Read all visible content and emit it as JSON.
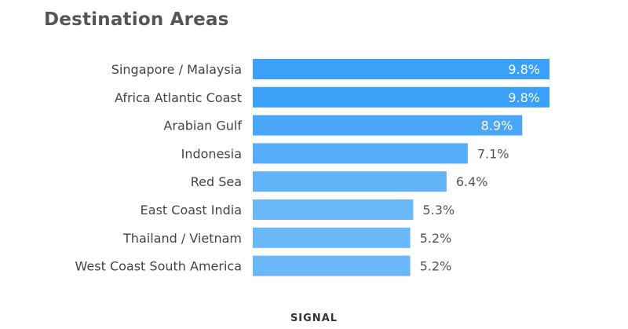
{
  "chart_data": {
    "type": "bar",
    "orientation": "horizontal",
    "title": "Destination Areas",
    "categories": [
      "Singapore / Malaysia",
      "Africa Atlantic Coast",
      "Arabian Gulf",
      "Indonesia",
      "Red Sea",
      "East Coast India",
      "Thailand / Vietnam",
      "West Coast South America"
    ],
    "values": [
      9.8,
      9.8,
      8.9,
      7.1,
      6.4,
      5.3,
      5.2,
      5.2
    ],
    "value_labels": [
      "9.8%",
      "9.8%",
      "8.9%",
      "7.1%",
      "6.4%",
      "5.3%",
      "5.2%",
      "5.2%"
    ],
    "xlim": [
      0,
      9.8
    ],
    "grid": false,
    "legend": "none",
    "colors": [
      "#3aa0f8",
      "#3aa0f8",
      "#4aa6f8",
      "#57aef8",
      "#62b3f8",
      "#6bb8f8",
      "#6bb8f8",
      "#6bb8f8"
    ],
    "inside_label_color": "#ffffff",
    "outside_label_color": "#555555",
    "label_color": "#444444"
  },
  "footer": {
    "logo_text": "SIGNAL"
  }
}
